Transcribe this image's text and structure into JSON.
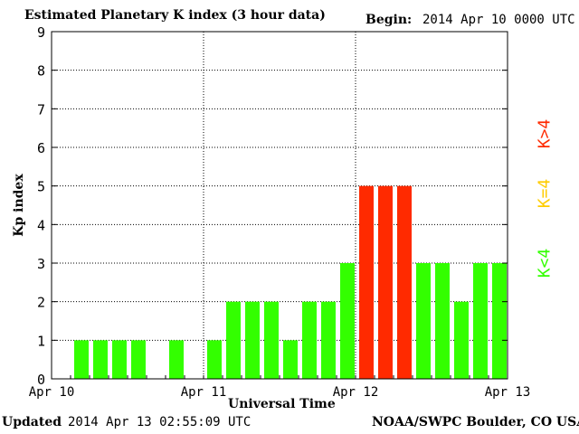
{
  "header": {
    "title": "Estimated Planetary K index (3 hour data)",
    "begin_label": "Begin:",
    "begin_value": "2014 Apr 10 0000 UTC"
  },
  "footer": {
    "updated_label": "Updated",
    "updated_value": "2014 Apr 13 02:55:09 UTC",
    "credit": "NOAA/SWPC Boulder, CO USA"
  },
  "legend": [
    {
      "label": "K<4",
      "color": "#33ff00"
    },
    {
      "label": "K=4",
      "color": "#ffcc00"
    },
    {
      "label": "K>4",
      "color": "#ff2a00"
    }
  ],
  "chart_data": {
    "type": "bar",
    "xlabel": "Universal Time",
    "ylabel": "Kp index",
    "ylim": [
      0,
      9
    ],
    "yticks": [
      "0",
      "1",
      "2",
      "3",
      "4",
      "5",
      "6",
      "7",
      "8",
      "9"
    ],
    "x_tick_labels": [
      "Apr 10",
      "Apr 11",
      "Apr 12",
      "Apr 13"
    ],
    "grid": "vertical day lines and horizontal dotted lines",
    "colors": {
      "low": "#33ff00",
      "equal": "#ffcc00",
      "high": "#ff2a00"
    },
    "values": [
      null,
      1,
      1,
      1,
      1,
      null,
      1,
      null,
      1,
      2,
      2,
      2,
      1,
      2,
      2,
      3,
      5,
      5,
      5,
      3,
      3,
      2,
      3,
      3
    ]
  }
}
